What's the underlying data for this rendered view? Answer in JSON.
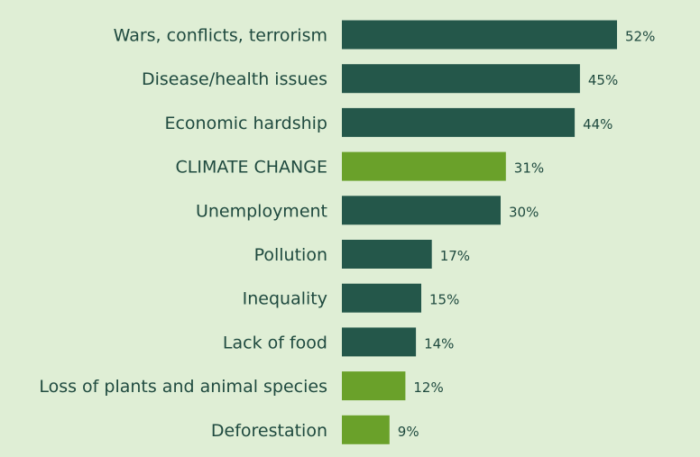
{
  "chart_data": {
    "type": "bar",
    "orientation": "horizontal",
    "categories": [
      "Wars, conflicts, terrorism",
      "Disease/health issues",
      "Economic hardship",
      "CLIMATE CHANGE",
      "Unemployment",
      "Pollution",
      "Inequality",
      "Lack of food",
      "Loss of plants and animal species",
      "Deforestation"
    ],
    "values": [
      52,
      45,
      44,
      31,
      30,
      17,
      15,
      14,
      12,
      9
    ],
    "value_labels": [
      "52%",
      "45%",
      "44%",
      "31%",
      "30%",
      "17%",
      "15%",
      "14%",
      "12%",
      "9%"
    ],
    "highlight": [
      false,
      false,
      false,
      true,
      false,
      false,
      false,
      false,
      true,
      true
    ],
    "colors": {
      "default": "#24574a",
      "highlight": "#6aa12a",
      "background": "#dfeed5",
      "text": "#1f4a3f"
    },
    "xlim": [
      0,
      52
    ],
    "grid": false,
    "legend": "none"
  }
}
